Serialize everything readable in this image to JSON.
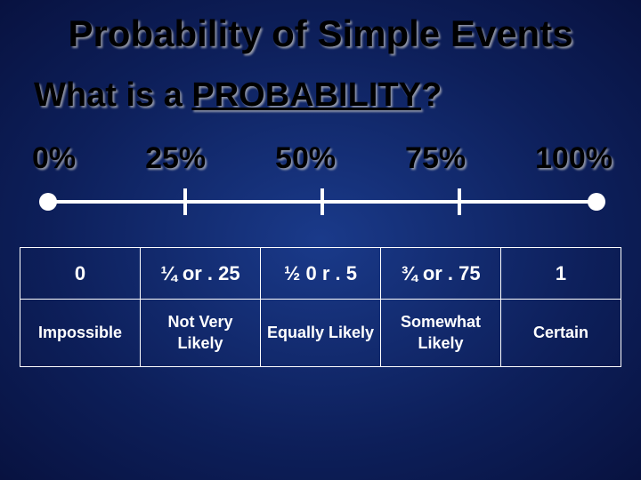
{
  "title": "Probability of Simple Events",
  "subtitle_prefix": "What is a ",
  "subtitle_underlined": "PROBABILITY",
  "subtitle_suffix": "?",
  "percent_labels": [
    "0%",
    "25%",
    "50%",
    "75%",
    "100%"
  ],
  "scale": {
    "line_color": "#ffffff",
    "tick_positions_pct": [
      0,
      25,
      50,
      75,
      100
    ],
    "endpoints_pct": [
      0,
      100
    ]
  },
  "table": {
    "row_values": [
      "0",
      "¼ or . 25",
      "½ 0 r . 5",
      "¾ or . 75",
      "1"
    ],
    "row_descriptions": [
      "Impossible",
      "Not Very\nLikely",
      "Equally Likely",
      "Somewhat\nLikely",
      "Certain"
    ]
  },
  "colors": {
    "background_center": "#1a3a8a",
    "background_edge": "#081240",
    "title_text": "#000000",
    "body_text": "#ffffff",
    "border": "#ffffff"
  }
}
